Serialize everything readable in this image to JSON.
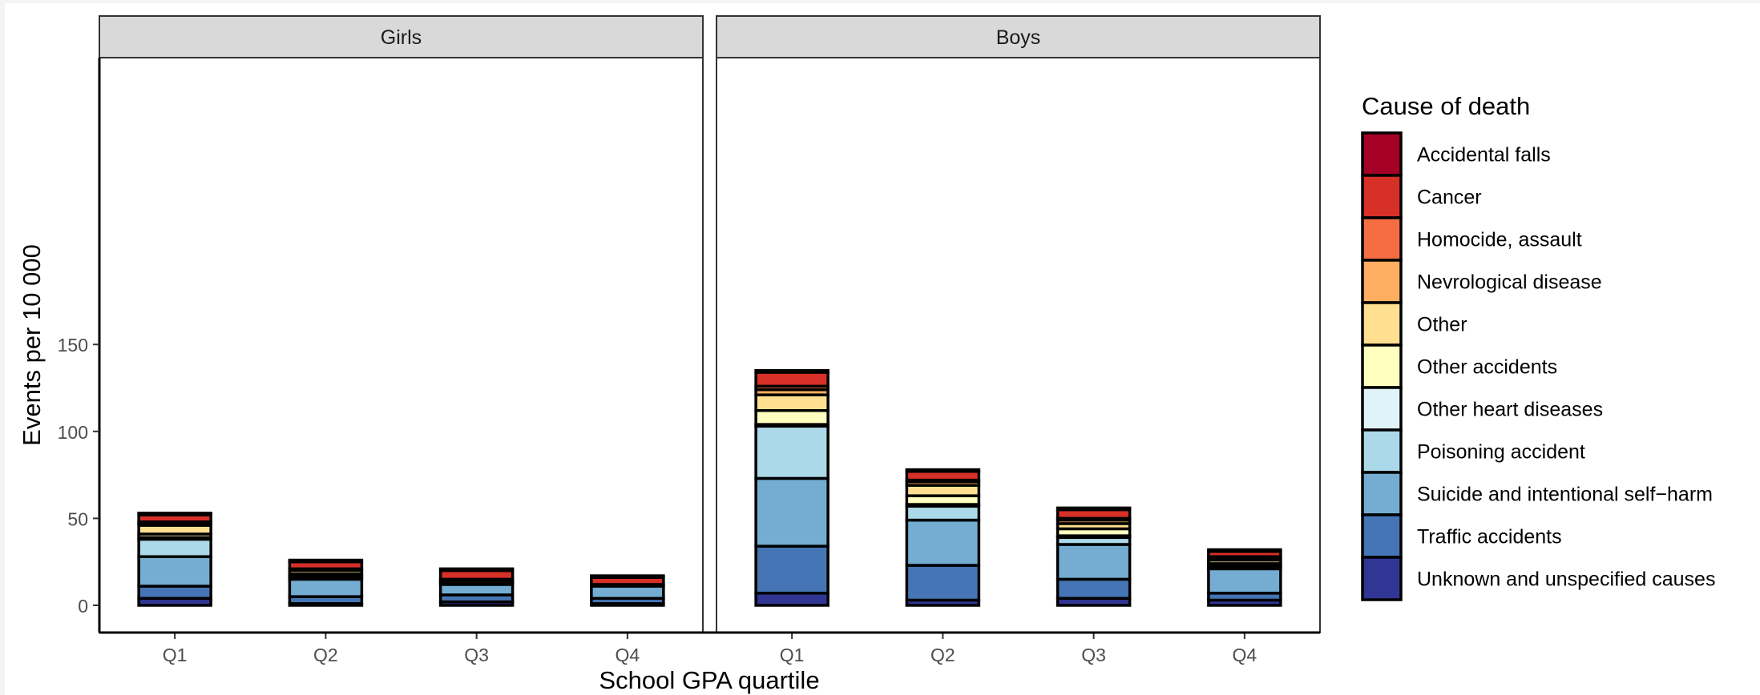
{
  "chart_data": {
    "type": "bar",
    "stacked": true,
    "xlabel": "School GPA quartile",
    "ylabel": "Events per 10 000",
    "ylim": [
      0,
      160
    ],
    "yticks": [
      0,
      50,
      100,
      150
    ],
    "categories": [
      "Q1",
      "Q2",
      "Q3",
      "Q4"
    ],
    "legend": {
      "title": "Cause of death",
      "position": "right",
      "entries": [
        {
          "name": "Accidental falls",
          "color": "#a50026"
        },
        {
          "name": "Cancer",
          "color": "#d73027"
        },
        {
          "name": "Homocide, assault",
          "color": "#f46d43"
        },
        {
          "name": "Nevrological disease",
          "color": "#fdae61"
        },
        {
          "name": "Other",
          "color": "#fee090"
        },
        {
          "name": "Other accidents",
          "color": "#ffffbf"
        },
        {
          "name": "Other heart diseases",
          "color": "#e0f3f8"
        },
        {
          "name": "Poisoning accident",
          "color": "#abd9e9"
        },
        {
          "name": "Suicide and intentional self−harm",
          "color": "#74add1"
        },
        {
          "name": "Traffic accidents",
          "color": "#4575b4"
        },
        {
          "name": "Unknown and unspecified causes",
          "color": "#313695"
        }
      ]
    },
    "panels": [
      {
        "title": "Girls",
        "series": [
          {
            "name": "Unknown and unspecified causes",
            "values": [
              4,
              1,
              2,
              1
            ]
          },
          {
            "name": "Traffic accidents",
            "values": [
              7,
              4,
              4,
              3
            ]
          },
          {
            "name": "Suicide and intentional self−harm",
            "values": [
              17,
              10,
              6,
              7
            ]
          },
          {
            "name": "Poisoning accident",
            "values": [
              10,
              1,
              1,
              1
            ]
          },
          {
            "name": "Other heart diseases",
            "values": [
              1,
              1,
              0,
              0
            ]
          },
          {
            "name": "Other accidents",
            "values": [
              2,
              1,
              0,
              0
            ]
          },
          {
            "name": "Other",
            "values": [
              5,
              2,
              1,
              0
            ]
          },
          {
            "name": "Nevrological disease",
            "values": [
              1,
              1,
              1,
              0
            ]
          },
          {
            "name": "Homocide, assault",
            "values": [
              1,
              0,
              0,
              0
            ]
          },
          {
            "name": "Cancer",
            "values": [
              4,
              4,
              5,
              4
            ]
          },
          {
            "name": "Accidental falls",
            "values": [
              1,
              1,
              1,
              1
            ]
          }
        ]
      },
      {
        "title": "Boys",
        "series": [
          {
            "name": "Unknown and unspecified causes",
            "values": [
              7,
              3,
              4,
              3
            ]
          },
          {
            "name": "Traffic accidents",
            "values": [
              27,
              20,
              11,
              4
            ]
          },
          {
            "name": "Suicide and intentional self−harm",
            "values": [
              39,
              26,
              20,
              14
            ]
          },
          {
            "name": "Poisoning accident",
            "values": [
              30,
              8,
              4,
              1
            ]
          },
          {
            "name": "Other heart diseases",
            "values": [
              1,
              1,
              1,
              1
            ]
          },
          {
            "name": "Other accidents",
            "values": [
              8,
              5,
              4,
              1
            ]
          },
          {
            "name": "Other",
            "values": [
              9,
              6,
              3,
              2
            ]
          },
          {
            "name": "Nevrological disease",
            "values": [
              3,
              2,
              2,
              1
            ]
          },
          {
            "name": "Homocide, assault",
            "values": [
              2,
              1,
              1,
              1
            ]
          },
          {
            "name": "Cancer",
            "values": [
              8,
              5,
              5,
              3
            ]
          },
          {
            "name": "Accidental falls",
            "values": [
              1,
              1,
              1,
              1
            ]
          }
        ]
      }
    ]
  }
}
